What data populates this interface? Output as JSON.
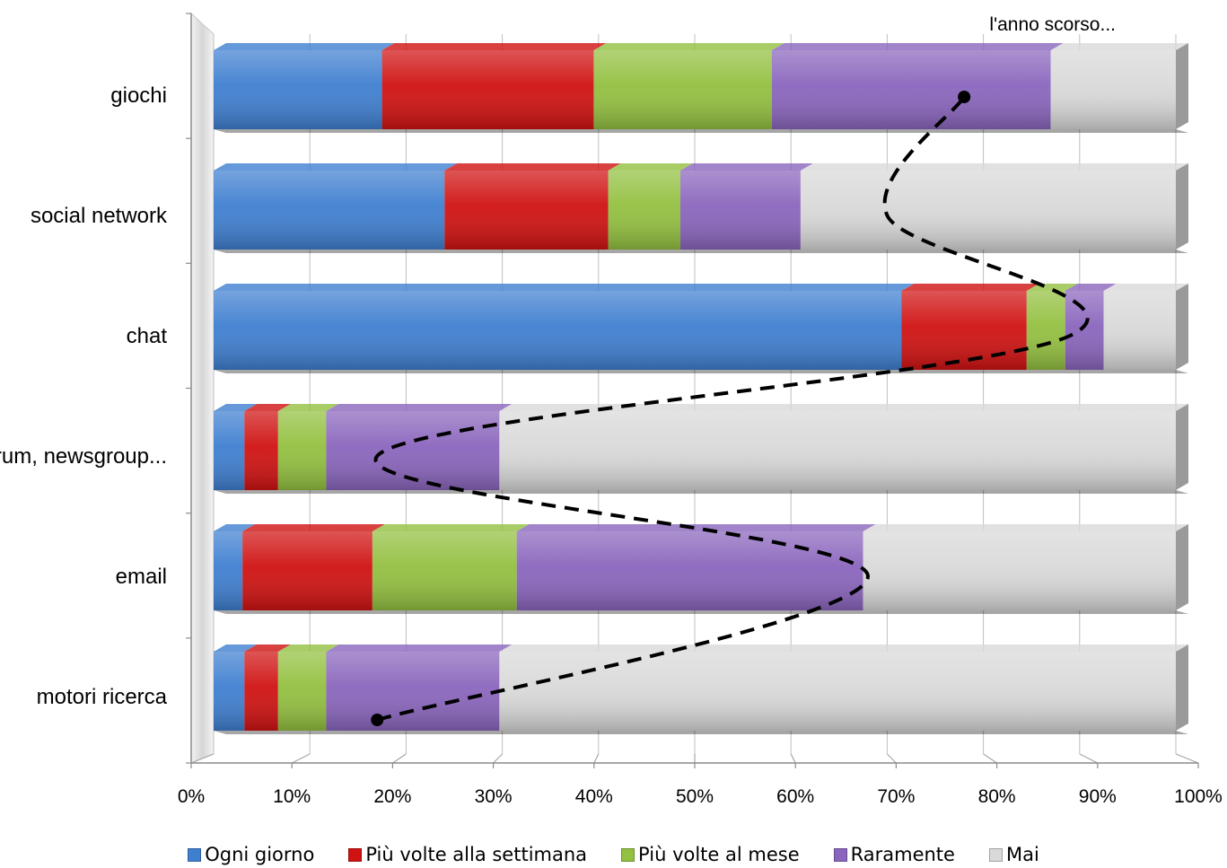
{
  "chart_data": {
    "type": "bar",
    "orientation": "horizontal",
    "stacked": "100%",
    "three_d": true,
    "title": "",
    "xlabel": "",
    "ylabel": "",
    "categories": [
      "giochi",
      "social network",
      "chat",
      "forum, newsgroup...",
      "email",
      "motori ricerca"
    ],
    "x_ticks": [
      "0%",
      "10%",
      "20%",
      "30%",
      "40%",
      "50%",
      "60%",
      "70%",
      "80%",
      "90%",
      "100%"
    ],
    "xlim": [
      0,
      100
    ],
    "grid": true,
    "legend_position": "bottom",
    "series": [
      {
        "name": "Ogni giorno",
        "color": "#3f7fd0",
        "values": [
          17.5,
          24,
          71.5,
          3.2,
          3,
          3.2
        ]
      },
      {
        "name": "Più volte alla settimana",
        "color": "#d01212",
        "values": [
          22,
          17,
          13,
          3.5,
          13.5,
          3.5
        ]
      },
      {
        "name": "Più volte al mese",
        "color": "#93c040",
        "values": [
          18.5,
          7.5,
          4,
          5,
          15,
          5
        ]
      },
      {
        "name": "Raramente",
        "color": "#8a65bd",
        "values": [
          29,
          12.5,
          4,
          18,
          36,
          18
        ]
      },
      {
        "name": "Mai",
        "color": "#d9d9d9",
        "values": [
          13,
          39,
          7.5,
          70.3,
          32.5,
          70.3
        ]
      }
    ],
    "annotation": {
      "text": "l'anno scorso...",
      "trend_line_style": "dashed",
      "trend_points": [
        {
          "category": "motori ricerca",
          "x": 17
        },
        {
          "category": "email",
          "x": 68
        },
        {
          "category": "forum, newsgroup...",
          "x": 17
        },
        {
          "category": "chat",
          "x": 89
        },
        {
          "category": "social network",
          "x": 70
        },
        {
          "category": "giochi",
          "x": 78
        }
      ]
    }
  }
}
